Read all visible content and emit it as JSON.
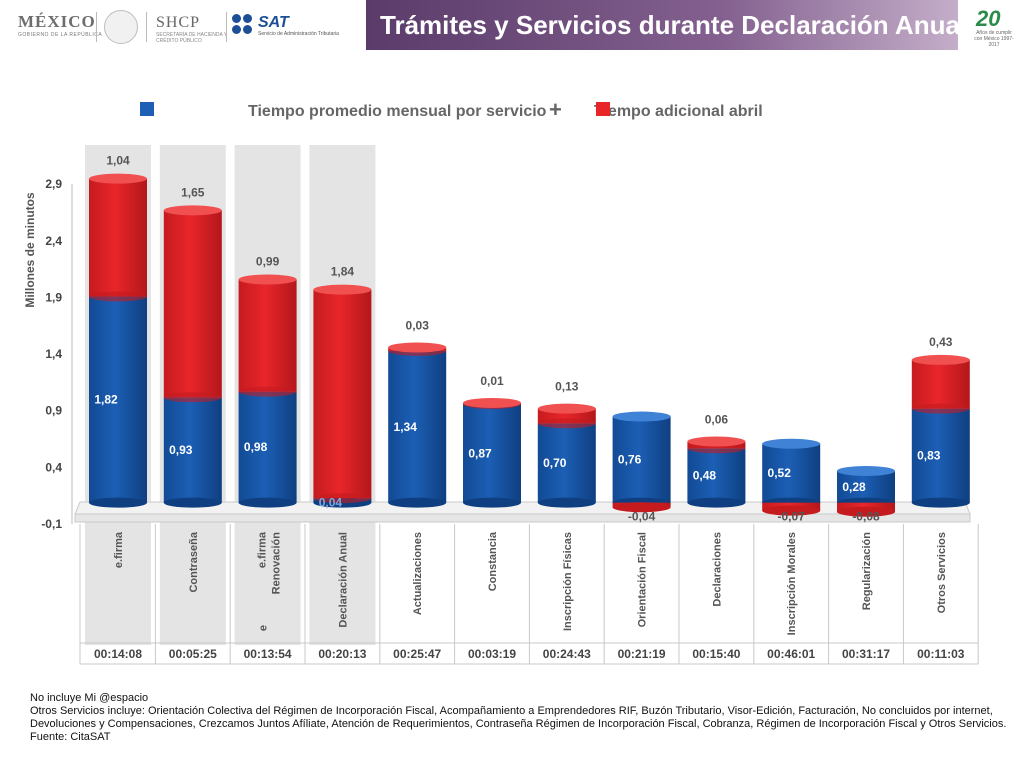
{
  "header": {
    "mexico_title": "MÉXICO",
    "mexico_subtitle": "GOBIERNO DE LA REPÚBLICA",
    "shcp_title": "SHCP",
    "shcp_subtitle": "SECRETARÍA DE HACIENDA Y CRÉDITO PÚBLICO",
    "sat_title": "SAT",
    "sat_subtitle": "Servicio de Administración Tributaria",
    "banner_title": "Trámites y Servicios durante Declaración Anual",
    "anniversary_number": "20",
    "anniversary_text": "Años de cumplir con México 1997-2017"
  },
  "colors": {
    "blue": "#1c5fb5",
    "red": "#e8262a",
    "banner": "#6a4a78",
    "highlight_column": "#e4e4e4"
  },
  "chart_data": {
    "type": "bar",
    "stacked": true,
    "title": "Tiempo promedio mensual por servicio",
    "title_connector": "+",
    "ylabel": "Millones de minutos",
    "ylim": [
      -0.1,
      2.9
    ],
    "yticks": [
      "-0,1",
      "0,4",
      "0,9",
      "1,4",
      "1,9",
      "2,4",
      "2,9"
    ],
    "yticks_values": [
      -0.1,
      0.4,
      0.9,
      1.4,
      1.9,
      2.4,
      2.9
    ],
    "legend_position": "top",
    "categories": [
      "e.firma",
      "Contraseña",
      "e.firma Renovación",
      "Declaración Anual",
      "Actualizaciones",
      "Constancia",
      "Inscripción Físicas",
      "Orientación Fiscal",
      "Declaraciones",
      "Inscripción Morales",
      "Regularización",
      "Otros Servicios"
    ],
    "category_extra": [
      "",
      "",
      "e",
      "",
      "",
      "",
      "",
      "",
      "",
      "",
      "",
      ""
    ],
    "highlighted": [
      true,
      true,
      true,
      true,
      false,
      false,
      false,
      false,
      false,
      false,
      false,
      false
    ],
    "series": [
      {
        "name": "Tiempo promedio mensual por servicio",
        "color": "#1c5fb5",
        "values": [
          1.82,
          0.93,
          0.98,
          0.04,
          1.34,
          0.87,
          0.7,
          0.76,
          0.48,
          0.52,
          0.28,
          0.83
        ],
        "labels": [
          "1,82",
          "0,93",
          "0,98",
          "0,04",
          "1,34",
          "0,87",
          "0,70",
          "0,76",
          "0,48",
          "0,52",
          "0,28",
          "0,83"
        ]
      },
      {
        "name": "Tiempo adicional abril",
        "color": "#e8262a",
        "values": [
          1.04,
          1.65,
          0.99,
          1.84,
          0.03,
          0.01,
          0.13,
          -0.04,
          0.06,
          -0.07,
          -0.08,
          0.43
        ],
        "labels": [
          "1,04",
          "1,65",
          "0,99",
          "1,84",
          "0,03",
          "0,01",
          "0,13",
          "-0,04",
          "0,06",
          "-0,07",
          "-0,08",
          "0,43"
        ]
      }
    ],
    "times": [
      "00:14:08",
      "00:05:25",
      "00:13:54",
      "00:20:13",
      "00:25:47",
      "00:03:19",
      "00:24:43",
      "00:21:19",
      "00:15:40",
      "00:46:01",
      "00:31:17",
      "00:11:03"
    ]
  },
  "footnotes": [
    "No incluye Mi @espacio",
    "Otros Servicios incluye: Orientación Colectiva del Régimen de Incorporación Fiscal, Acompañamiento a Emprendedores RIF, Buzón Tributario, Visor-Edición, Facturación, No concluidos por internet, Devoluciones y Compensaciones, Crezcamos Juntos Afíliate, Atención de Requerimientos, Contraseña Régimen de Incorporación Fiscal, Cobranza, Régimen de Incorporación Fiscal y Otros Servicios.",
    "Fuente: CitaSAT"
  ]
}
